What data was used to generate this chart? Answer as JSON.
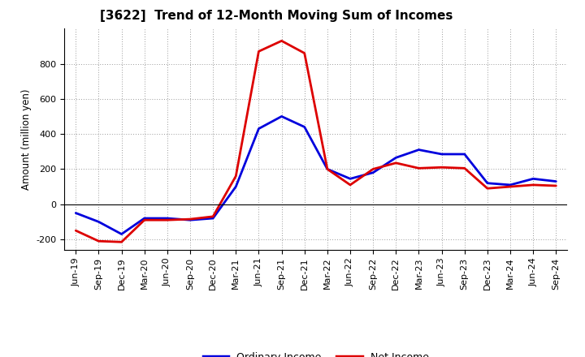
{
  "title": "[3622]  Trend of 12-Month Moving Sum of Incomes",
  "ylabel": "Amount (million yen)",
  "x_labels": [
    "Jun-19",
    "Sep-19",
    "Dec-19",
    "Mar-20",
    "Jun-20",
    "Sep-20",
    "Dec-20",
    "Mar-21",
    "Jun-21",
    "Sep-21",
    "Dec-21",
    "Mar-22",
    "Jun-22",
    "Sep-22",
    "Dec-22",
    "Mar-23",
    "Jun-23",
    "Sep-23",
    "Dec-23",
    "Mar-24",
    "Jun-24",
    "Sep-24"
  ],
  "ordinary_income": [
    -50,
    -100,
    -170,
    -80,
    -80,
    -90,
    -80,
    100,
    430,
    500,
    440,
    200,
    145,
    180,
    265,
    310,
    285,
    285,
    120,
    110,
    145,
    130
  ],
  "net_income": [
    -150,
    -210,
    -215,
    -90,
    -90,
    -85,
    -70,
    160,
    870,
    930,
    860,
    200,
    110,
    200,
    235,
    205,
    210,
    205,
    90,
    100,
    110,
    105
  ],
  "ordinary_color": "#0000dd",
  "net_color": "#dd0000",
  "ylim_min": -260,
  "ylim_max": 1000,
  "yticks": [
    -200,
    0,
    200,
    400,
    600,
    800
  ],
  "background_color": "#ffffff",
  "grid_color": "#aaaaaa",
  "linewidth": 2.0,
  "title_fontsize": 11,
  "axis_fontsize": 8,
  "ylabel_fontsize": 8.5,
  "legend_fontsize": 9
}
